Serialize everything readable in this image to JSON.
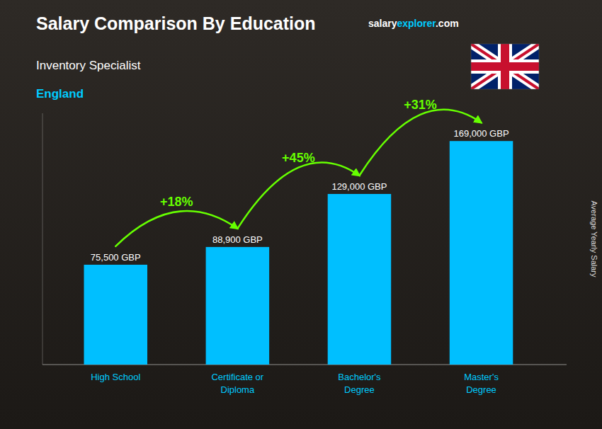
{
  "chart_data": {
    "type": "bar",
    "title": "Salary Comparison By Education",
    "subtitle": "Inventory Specialist",
    "location": "England",
    "watermark": [
      "salary",
      "explorer",
      ".com"
    ],
    "ylabel": "Average Yearly Salary",
    "categories": [
      "High School",
      "Certificate or\nDiploma",
      "Bachelor's\nDegree",
      "Master's\nDegree"
    ],
    "values": [
      75500,
      88900,
      129000,
      169000
    ],
    "value_labels": [
      "75,500 GBP",
      "88,900 GBP",
      "129,000 GBP",
      "169,000 GBP"
    ],
    "annotations": [
      "+18%",
      "+45%",
      "+31%"
    ],
    "color": "#00bfff",
    "ylim": [
      0,
      190000
    ],
    "grid": false,
    "data_labels": true,
    "tick_labels": false
  }
}
